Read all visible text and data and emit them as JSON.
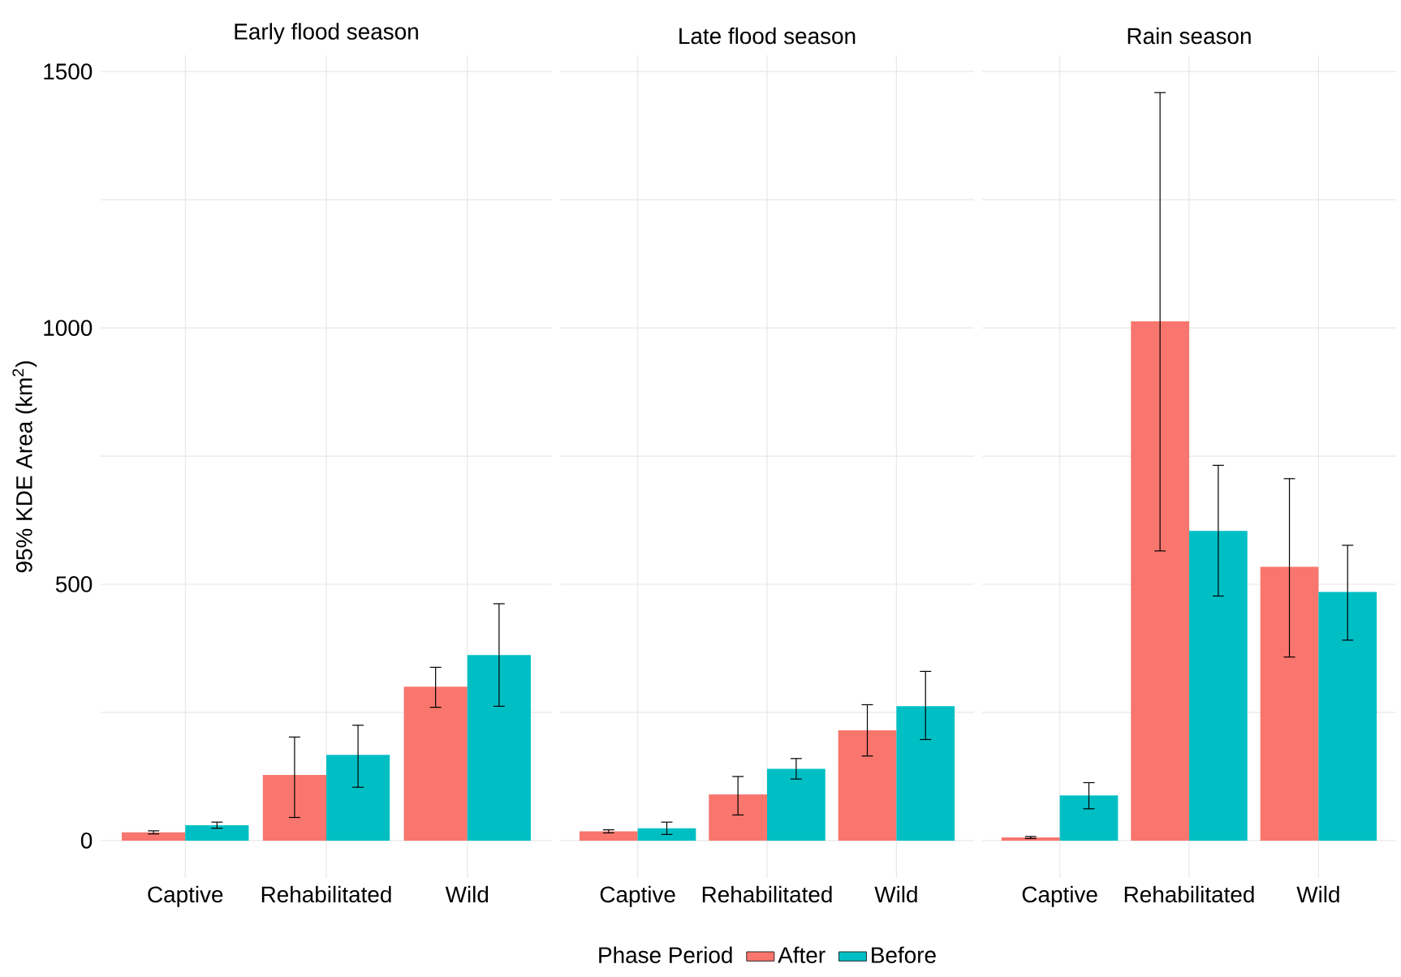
{
  "chart_data": [
    {
      "type": "bar",
      "title": "Early flood season",
      "ylabel": "95% KDE Area (km$^{2}$)",
      "categories": [
        "Captive",
        "Rehabilitated",
        "Wild"
      ],
      "series": [
        {
          "color": "#f8766d",
          "values": [
            16,
            128,
            300
          ],
          "errors": [
            [
              13,
              19
            ],
            [
              45,
              202
            ],
            [
              260,
              338
            ]
          ]
        },
        {
          "color": "#00bfc4",
          "values": [
            30,
            167,
            362
          ],
          "errors": [
            [
              24,
              36
            ],
            [
              104,
              225
            ],
            [
              262,
              462
            ]
          ]
        }
      ],
      "ylim": [
        -73,
        1532
      ],
      "yticks": [
        0,
        {
          "value": 250,
          "label": null
        },
        500,
        {
          "value": 750,
          "label": null
        },
        1000,
        {
          "value": 1250,
          "label": null
        },
        1500
      ],
      "grid": true
    },
    {
      "type": "bar",
      "title": "Late flood season",
      "categories": [
        "Captive",
        "Rehabilitated",
        "Wild"
      ],
      "legend": "bottom",
      "legend_title": "Phase Period",
      "series": [
        {
          "name": "After",
          "color": "#f8766d",
          "values": [
            18,
            90,
            215
          ],
          "errors": [
            [
              15,
              21
            ],
            [
              50,
              125
            ],
            [
              165,
              265
            ]
          ]
        },
        {
          "name": "Before",
          "color": "#00bfc4",
          "values": [
            24,
            140,
            262
          ],
          "errors": [
            [
              12,
              36
            ],
            [
              120,
              160
            ],
            [
              197,
              330
            ]
          ]
        }
      ],
      "ylim": [
        -73,
        1532
      ],
      "yticks": [
        0,
        {
          "value": 250,
          "label": null
        },
        500,
        {
          "value": 750,
          "label": null
        },
        1000,
        {
          "value": 1250,
          "label": null
        },
        1500
      ],
      "grid": true,
      "tick_labels": "x"
    },
    {
      "type": "bar",
      "title": "Rain season",
      "categories": [
        "Captive",
        "Rehabilitated",
        "Wild"
      ],
      "series": [
        {
          "color": "#f8766d",
          "values": [
            6,
            1013,
            534
          ],
          "errors": [
            [
              4,
              8
            ],
            [
              565,
              1459
            ],
            [
              358,
              706
            ]
          ]
        },
        {
          "color": "#00bfc4",
          "values": [
            88,
            604,
            485
          ],
          "errors": [
            [
              62,
              113
            ],
            [
              477,
              732
            ],
            [
              391,
              576
            ]
          ]
        }
      ],
      "ylim": [
        -73,
        1532
      ],
      "yticks": [
        0,
        {
          "value": 250,
          "label": null
        },
        500,
        {
          "value": 750,
          "label": null
        },
        1000,
        {
          "value": 1250,
          "label": null
        },
        1500
      ],
      "grid": true,
      "tick_labels": "x"
    }
  ]
}
